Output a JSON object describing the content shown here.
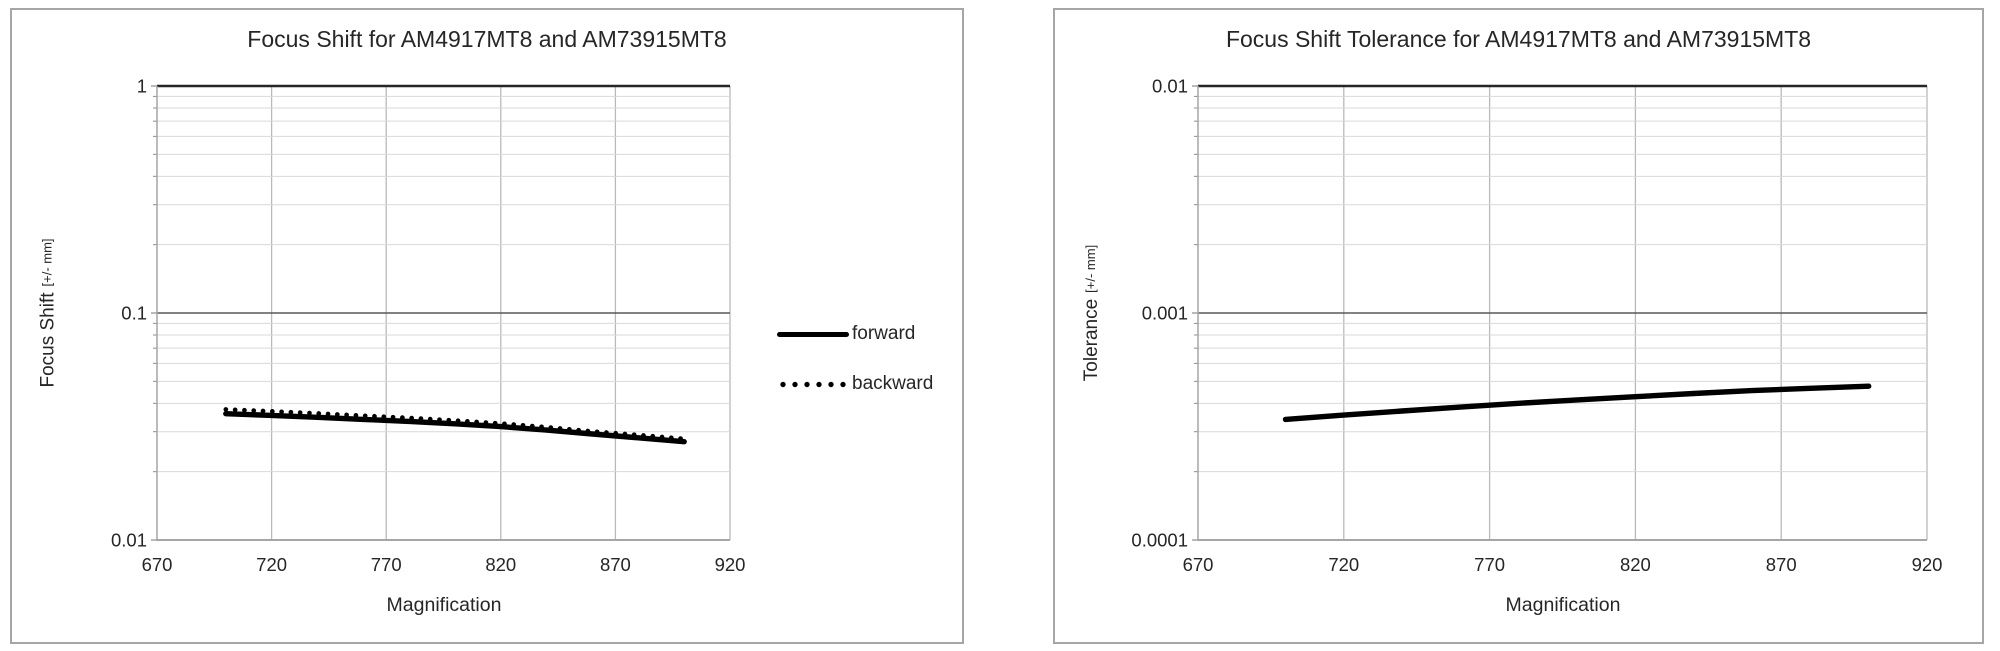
{
  "window": {
    "background": "#ffffff",
    "panel_border_color": "#a6a6a6"
  },
  "style": {
    "series_color": "#000000",
    "major_gridline_color": "#595959",
    "top_border_color": "#262626",
    "minor_gridline_color": "#d9d9d9",
    "vertical_gridline_color": "#b9b9b9",
    "axis_color": "#a6a6a6",
    "text_color": "#262626"
  },
  "chart_data": [
    {
      "type": "line",
      "title": "Focus Shift for AM4917MT8 and AM73915MT8",
      "xlabel": "Magnification",
      "ylabel": "Focus Shift",
      "ylabel_unit": "[+/- mm]",
      "yscale": "log",
      "ylim": [
        0.01,
        1
      ],
      "yticks": [
        "1",
        "0.1",
        "0.01"
      ],
      "xlim": [
        670,
        920
      ],
      "xticks": [
        670,
        720,
        770,
        820,
        870,
        920
      ],
      "grid": "log-minor+major",
      "legend_position": "right",
      "x": [
        700,
        720,
        740,
        760,
        780,
        800,
        820,
        840,
        860,
        880,
        900
      ],
      "series": [
        {
          "name": "forward",
          "line_style": "solid",
          "color": "#000000",
          "values": [
            0.036,
            0.0354,
            0.0347,
            0.034,
            0.0333,
            0.0325,
            0.0316,
            0.0305,
            0.0293,
            0.0282,
            0.0271
          ]
        },
        {
          "name": "backward",
          "line_style": "dotted",
          "color": "#000000",
          "values": [
            0.0376,
            0.0369,
            0.0361,
            0.0353,
            0.0345,
            0.0336,
            0.0326,
            0.0314,
            0.0301,
            0.029,
            0.0279
          ]
        }
      ]
    },
    {
      "type": "line",
      "title": "Focus Shift Tolerance for AM4917MT8 and AM73915MT8",
      "xlabel": "Magnification",
      "ylabel": "Tolerance",
      "ylabel_unit": "[+/- mm]",
      "yscale": "log",
      "ylim": [
        0.0001,
        0.01
      ],
      "yticks": [
        "0.01",
        "0.001",
        "0.0001"
      ],
      "xlim": [
        670,
        920
      ],
      "xticks": [
        670,
        720,
        770,
        820,
        870,
        920
      ],
      "grid": "log-minor+major",
      "legend_position": "none",
      "x": [
        700,
        720,
        740,
        760,
        780,
        800,
        820,
        840,
        860,
        880,
        900
      ],
      "series": [
        {
          "line_style": "solid",
          "color": "#000000",
          "values": [
            0.00034,
            0.000355,
            0.00037,
            0.000385,
            0.0004,
            0.000414,
            0.000428,
            0.000442,
            0.000455,
            0.000466,
            0.000476
          ]
        }
      ]
    }
  ]
}
